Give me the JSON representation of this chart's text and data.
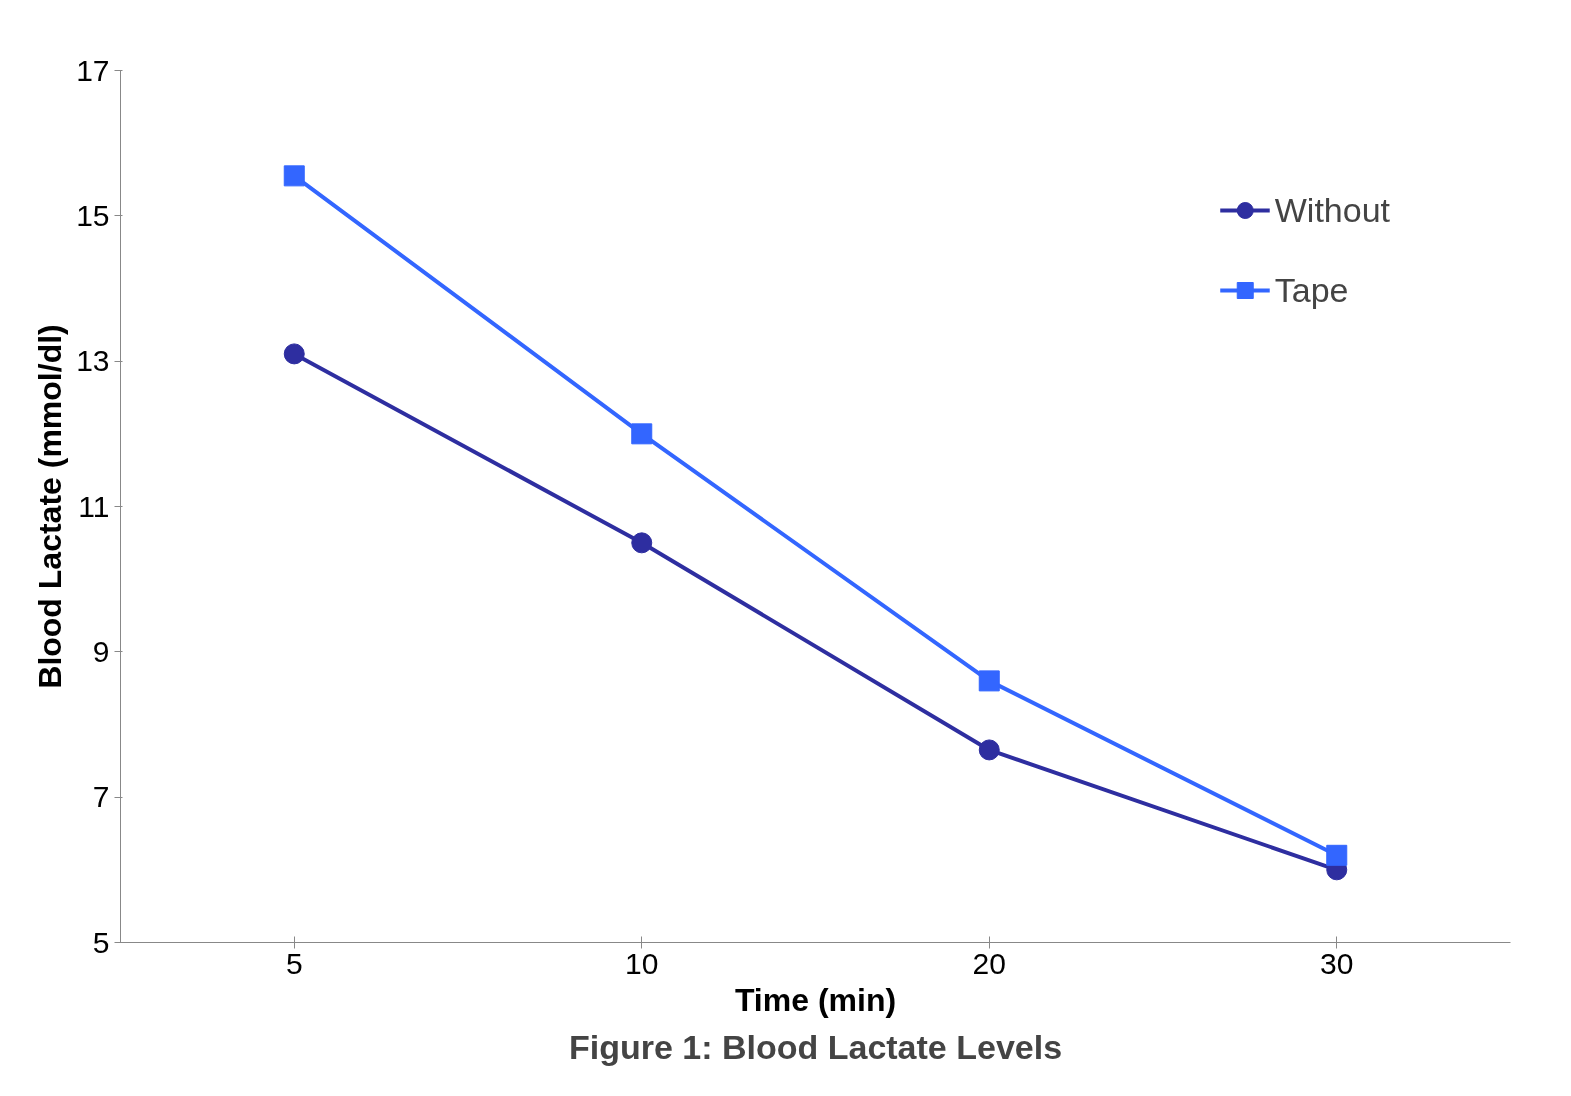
{
  "chart_data": {
    "type": "line",
    "title": "Figure 1: Blood Lactate Levels",
    "xlabel": "Time (min)",
    "ylabel": "Blood Lactate (mmol/dl)",
    "categories": [
      "5",
      "10",
      "20",
      "30"
    ],
    "series": [
      {
        "name": "Without",
        "color": "#2e2ea0",
        "marker": "circle",
        "values": [
          13.1,
          10.5,
          7.65,
          6.0
        ]
      },
      {
        "name": "Tape",
        "color": "#3366ff",
        "marker": "square",
        "values": [
          15.55,
          12.0,
          8.6,
          6.2
        ]
      }
    ],
    "ylim": [
      5,
      17
    ],
    "yticks": [
      5,
      7,
      9,
      11,
      13,
      15,
      17
    ],
    "grid": false,
    "legend": "top right"
  }
}
